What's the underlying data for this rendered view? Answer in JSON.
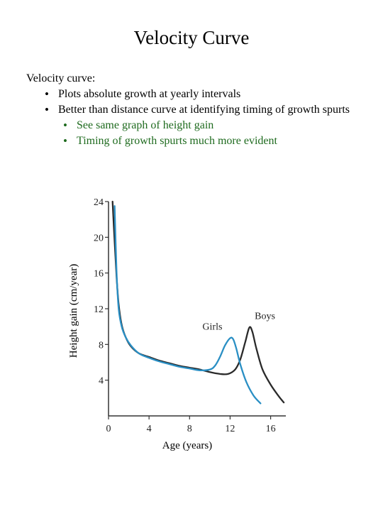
{
  "slide": {
    "title": "Velocity Curve",
    "lead": "Velocity curve:",
    "bullets": [
      {
        "text": "Plots absolute growth at yearly intervals",
        "sub": []
      },
      {
        "text": "Better than distance curve at identifying timing of growth spurts",
        "sub": [
          "See same graph of height gain",
          "Timing of growth spurts much more evident"
        ]
      }
    ],
    "colors": {
      "body_text": "#000000",
      "sub_bullet_text": "#1f6b1f"
    }
  },
  "chart_data": {
    "type": "line",
    "xlabel": "Age (years)",
    "ylabel": "Height gain (cm/year)",
    "xlim": [
      0,
      17.5
    ],
    "ylim": [
      0,
      24
    ],
    "xticks": [
      0,
      4,
      8,
      12,
      16
    ],
    "yticks": [
      4,
      8,
      12,
      16,
      20,
      24
    ],
    "series": [
      {
        "name": "Boys",
        "color": "#2a2a2a",
        "x": [
          0.4,
          0.6,
          0.8,
          1.0,
          1.3,
          1.7,
          2.2,
          3.0,
          4.0,
          5.0,
          6.0,
          7.0,
          8.0,
          9.0,
          10.0,
          11.0,
          11.8,
          12.5,
          13.0,
          13.5,
          13.9,
          14.2,
          14.6,
          15.2,
          16.0,
          16.8,
          17.3
        ],
        "y": [
          24.0,
          19.5,
          15.5,
          12.5,
          10.2,
          8.8,
          7.8,
          7.0,
          6.6,
          6.2,
          5.9,
          5.6,
          5.4,
          5.2,
          4.9,
          4.7,
          4.7,
          5.2,
          6.3,
          8.3,
          9.9,
          9.4,
          7.5,
          5.2,
          3.5,
          2.2,
          1.5
        ]
      },
      {
        "name": "Girls",
        "color": "#2a8fc4",
        "x": [
          0.6,
          0.8,
          1.0,
          1.3,
          1.7,
          2.2,
          3.0,
          4.0,
          5.0,
          6.0,
          7.0,
          8.0,
          9.0,
          10.0,
          10.5,
          11.0,
          11.5,
          12.0,
          12.3,
          12.6,
          13.0,
          13.6,
          14.3,
          15.0
        ],
        "y": [
          23.5,
          16.0,
          12.0,
          10.0,
          8.8,
          7.9,
          7.0,
          6.5,
          6.1,
          5.8,
          5.5,
          5.3,
          5.1,
          5.2,
          5.6,
          6.6,
          7.9,
          8.7,
          8.6,
          7.6,
          5.8,
          3.8,
          2.3,
          1.4
        ]
      }
    ]
  }
}
